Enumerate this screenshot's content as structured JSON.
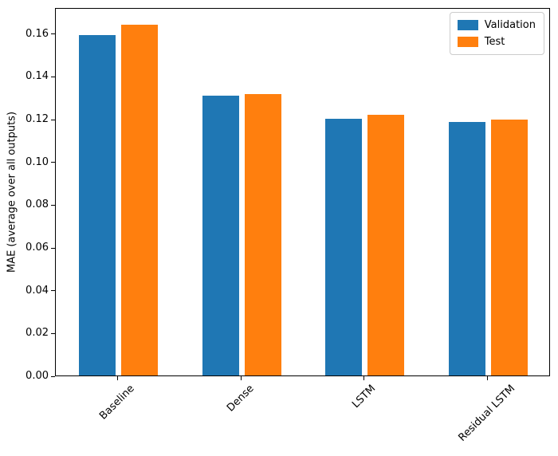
{
  "chart_data": {
    "type": "bar",
    "title": "",
    "xlabel": "",
    "ylabel": "MAE (average over all outputs)",
    "categories": [
      "Baseline",
      "Dense",
      "LSTM",
      "Residual LSTM"
    ],
    "series": [
      {
        "name": "Validation",
        "color": "#1f77b4",
        "values": [
          0.159,
          0.131,
          0.12,
          0.1185
        ]
      },
      {
        "name": "Test",
        "color": "#ff7f0e",
        "values": [
          0.164,
          0.1315,
          0.122,
          0.1195
        ]
      }
    ],
    "ylim": [
      0,
      0.1722
    ],
    "yticks": [
      0.0,
      0.02,
      0.04,
      0.06,
      0.08,
      0.1,
      0.12,
      0.14,
      0.16
    ],
    "yticklabels": [
      "0.00",
      "0.02",
      "0.04",
      "0.06",
      "0.08",
      "0.10",
      "0.12",
      "0.14",
      "0.16"
    ],
    "x_tick_rotation": 45,
    "grid": false,
    "legend_position": "upper right"
  }
}
